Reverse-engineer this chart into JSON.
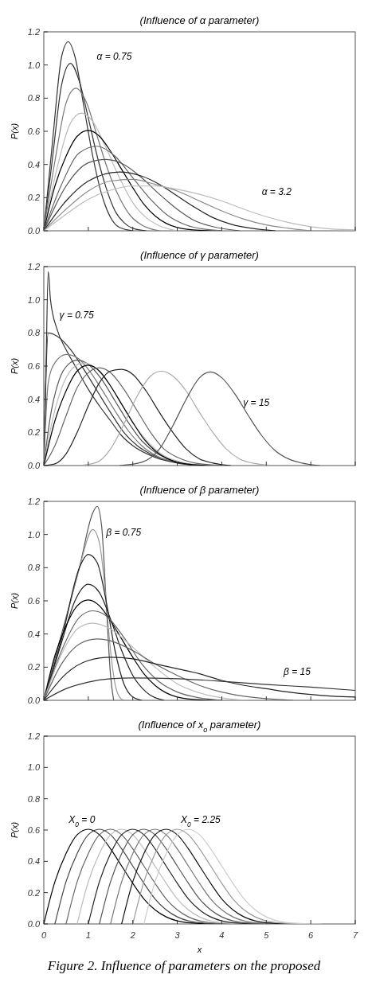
{
  "chart_data": [
    {
      "type": "line",
      "title": "(Influence of α parameter)",
      "ylabel": "P(x)",
      "xlim": [
        0,
        7
      ],
      "xticks": [
        0,
        1,
        2,
        3,
        4,
        5,
        6,
        7
      ],
      "ylim": [
        0,
        1.2
      ],
      "yticks": [
        {
          "value": 0,
          "label": "0.0"
        },
        {
          "value": 0.2,
          "label": "0.2"
        },
        {
          "value": 0.4,
          "label": "0.4"
        },
        {
          "value": 0.6,
          "label": "0.6"
        },
        {
          "value": 0.8,
          "label": "0.8"
        },
        {
          "value": 1,
          "label": "1.0"
        },
        {
          "value": 1.2,
          "label": "1.2"
        }
      ],
      "tick_labels": "y",
      "annotations": [
        "α = 0.75",
        "α = 3.2"
      ],
      "series": [
        {
          "color": "#333333",
          "x": [
            0,
            0.2,
            0.4,
            0.55,
            0.7,
            0.9,
            1.1,
            1.3,
            1.5,
            1.7,
            2
          ],
          "values": [
            0,
            0.55,
            1.05,
            1.14,
            1.05,
            0.75,
            0.45,
            0.22,
            0.08,
            0.02,
            0
          ]
        },
        {
          "color": "#333333",
          "x": [
            0,
            0.2,
            0.4,
            0.6,
            0.8,
            1,
            1.2,
            1.4,
            1.6,
            1.8,
            2,
            2.3
          ],
          "values": [
            0,
            0.45,
            0.88,
            1.01,
            0.9,
            0.68,
            0.45,
            0.26,
            0.12,
            0.05,
            0.015,
            0
          ]
        },
        {
          "color": "#777777",
          "x": [
            0,
            0.25,
            0.5,
            0.72,
            0.95,
            1.2,
            1.45,
            1.7,
            1.95,
            2.2,
            2.6
          ],
          "values": [
            0,
            0.42,
            0.77,
            0.86,
            0.78,
            0.57,
            0.36,
            0.2,
            0.09,
            0.035,
            0
          ]
        },
        {
          "color": "#bbbbbb",
          "x": [
            0,
            0.3,
            0.6,
            0.85,
            1.1,
            1.4,
            1.7,
            2,
            2.3,
            2.6,
            3
          ],
          "values": [
            0,
            0.38,
            0.65,
            0.71,
            0.66,
            0.5,
            0.32,
            0.17,
            0.08,
            0.03,
            0
          ]
        },
        {
          "color": "#000000",
          "x": [
            0,
            0.25,
            0.5,
            0.75,
            1,
            1.25,
            1.5,
            1.75,
            2,
            2.25,
            2.5,
            2.75,
            3,
            3.5,
            4
          ],
          "values": [
            0,
            0.27,
            0.45,
            0.57,
            0.605,
            0.57,
            0.48,
            0.37,
            0.26,
            0.16,
            0.09,
            0.045,
            0.02,
            0.003,
            0
          ]
        },
        {
          "color": "#666666",
          "x": [
            0,
            0.4,
            0.8,
            1.2,
            1.6,
            2,
            2.4,
            2.8,
            3.2,
            3.6,
            4
          ],
          "values": [
            0,
            0.28,
            0.47,
            0.51,
            0.45,
            0.32,
            0.19,
            0.09,
            0.035,
            0.01,
            0
          ]
        },
        {
          "color": "#555555",
          "x": [
            0,
            0.5,
            1,
            1.4,
            1.8,
            2.2,
            2.6,
            3,
            3.4,
            3.8,
            4.4
          ],
          "values": [
            0,
            0.27,
            0.41,
            0.43,
            0.4,
            0.32,
            0.22,
            0.13,
            0.06,
            0.025,
            0
          ]
        },
        {
          "color": "#222222",
          "x": [
            0,
            0.5,
            1,
            1.7,
            2.2,
            2.6,
            3,
            3.4,
            3.8,
            4.2,
            4.8,
            5.2
          ],
          "values": [
            0,
            0.18,
            0.3,
            0.355,
            0.33,
            0.28,
            0.21,
            0.14,
            0.08,
            0.04,
            0.01,
            0
          ]
        },
        {
          "color": "#888888",
          "x": [
            0,
            0.5,
            1,
            1.5,
            2,
            2.5,
            3,
            3.5,
            4,
            4.5,
            5,
            5.5,
            6
          ],
          "values": [
            0,
            0.13,
            0.24,
            0.3,
            0.31,
            0.28,
            0.24,
            0.18,
            0.12,
            0.07,
            0.035,
            0.015,
            0
          ]
        },
        {
          "color": "#bbbbbb",
          "x": [
            0,
            0.5,
            1,
            1.5,
            2,
            2.5,
            3,
            3.5,
            4,
            4.5,
            5,
            5.5,
            6,
            6.5,
            7
          ],
          "values": [
            0,
            0.1,
            0.19,
            0.245,
            0.27,
            0.27,
            0.25,
            0.22,
            0.18,
            0.13,
            0.085,
            0.05,
            0.025,
            0.01,
            0.005
          ]
        }
      ]
    },
    {
      "type": "line",
      "title": "(Influence of γ parameter)",
      "ylabel": "P(x)",
      "xlim": [
        0,
        7
      ],
      "xticks": [
        0,
        1,
        2,
        3,
        4,
        5,
        6,
        7
      ],
      "ylim": [
        0,
        1.2
      ],
      "yticks": [
        {
          "value": 0,
          "label": "0.0"
        },
        {
          "value": 0.2,
          "label": "0.2"
        },
        {
          "value": 0.4,
          "label": "0.4"
        },
        {
          "value": 0.6,
          "label": "0.6"
        },
        {
          "value": 0.8,
          "label": "0.8"
        },
        {
          "value": 1,
          "label": "1.0"
        },
        {
          "value": 1.2,
          "label": "1.2"
        }
      ],
      "tick_labels": "y",
      "annotations": [
        "γ = 0.75",
        "γ = 15"
      ],
      "series": [
        {
          "color": "#333333",
          "x": [
            0,
            0.05,
            0.1,
            0.15,
            0.3,
            0.5,
            0.75,
            1,
            1.25,
            1.5,
            1.75,
            2,
            2.5,
            3,
            3.5
          ],
          "values": [
            0,
            0.6,
            1.17,
            1,
            0.82,
            0.7,
            0.58,
            0.46,
            0.36,
            0.27,
            0.18,
            0.12,
            0.05,
            0.015,
            0
          ]
        },
        {
          "color": "#333333",
          "x": [
            0,
            0.1,
            0.3,
            0.6,
            0.9,
            1.2,
            1.5,
            1.8,
            2.1,
            2.4,
            2.8,
            3.4
          ],
          "values": [
            0,
            0.8,
            0.78,
            0.7,
            0.58,
            0.45,
            0.32,
            0.2,
            0.12,
            0.07,
            0.03,
            0
          ]
        },
        {
          "color": "#777777",
          "x": [
            0,
            0.1,
            0.25,
            0.5,
            0.75,
            1,
            1.3,
            1.6,
            1.9,
            2.2,
            2.6,
            3,
            3.6
          ],
          "values": [
            0,
            0.5,
            0.62,
            0.67,
            0.65,
            0.58,
            0.46,
            0.33,
            0.21,
            0.12,
            0.05,
            0.02,
            0
          ]
        },
        {
          "color": "#555555",
          "x": [
            0,
            0.15,
            0.35,
            0.55,
            0.75,
            1,
            1.3,
            1.6,
            1.9,
            2.2,
            2.5,
            2.9,
            3.5
          ],
          "values": [
            0,
            0.3,
            0.52,
            0.61,
            0.635,
            0.61,
            0.52,
            0.39,
            0.26,
            0.15,
            0.08,
            0.03,
            0
          ]
        },
        {
          "color": "#bbbbbb",
          "x": [
            0,
            0.2,
            0.45,
            0.7,
            0.9,
            1.15,
            1.45,
            1.75,
            2.05,
            2.35,
            2.7,
            3.1,
            3.7
          ],
          "values": [
            0,
            0.28,
            0.5,
            0.6,
            0.62,
            0.59,
            0.5,
            0.37,
            0.24,
            0.14,
            0.06,
            0.02,
            0
          ]
        },
        {
          "color": "#000000",
          "x": [
            0,
            0.25,
            0.5,
            0.75,
            1,
            1.25,
            1.5,
            1.75,
            2,
            2.25,
            2.5,
            2.75,
            3,
            3.5,
            4
          ],
          "values": [
            0,
            0.27,
            0.45,
            0.57,
            0.605,
            0.57,
            0.48,
            0.37,
            0.26,
            0.16,
            0.09,
            0.045,
            0.02,
            0.003,
            0
          ]
        },
        {
          "color": "#666666",
          "x": [
            0,
            0.25,
            0.5,
            0.75,
            1,
            1.25,
            1.5,
            1.8,
            2.1,
            2.4,
            2.7,
            3,
            3.4,
            4
          ],
          "values": [
            0,
            0.12,
            0.3,
            0.47,
            0.56,
            0.59,
            0.56,
            0.46,
            0.33,
            0.2,
            0.1,
            0.05,
            0.015,
            0
          ]
        },
        {
          "color": "#222222",
          "x": [
            0,
            0.25,
            0.5,
            0.75,
            1,
            1.25,
            1.5,
            1.75,
            2,
            2.3,
            2.6,
            2.9,
            3.2,
            3.5,
            3.8,
            4.2
          ],
          "values": [
            0,
            0.01,
            0.07,
            0.2,
            0.36,
            0.5,
            0.57,
            0.58,
            0.55,
            0.45,
            0.32,
            0.2,
            0.1,
            0.04,
            0.015,
            0
          ]
        },
        {
          "color": "#aaaaaa",
          "x": [
            0.8,
            1.2,
            1.5,
            1.8,
            2.1,
            2.4,
            2.65,
            2.9,
            3.2,
            3.5,
            3.8,
            4.1,
            4.4,
            4.8,
            5.2
          ],
          "values": [
            0,
            0.02,
            0.1,
            0.25,
            0.42,
            0.54,
            0.57,
            0.54,
            0.45,
            0.32,
            0.2,
            0.1,
            0.04,
            0.01,
            0
          ]
        },
        {
          "color": "#555555",
          "x": [
            1.7,
            2.2,
            2.6,
            2.9,
            3.2,
            3.5,
            3.75,
            4,
            4.3,
            4.6,
            4.9,
            5.2,
            5.5,
            5.8,
            6.2
          ],
          "values": [
            0,
            0.02,
            0.1,
            0.24,
            0.4,
            0.53,
            0.565,
            0.53,
            0.43,
            0.3,
            0.18,
            0.09,
            0.04,
            0.015,
            0
          ]
        }
      ]
    },
    {
      "type": "line",
      "title": "(Influence of β parameter)",
      "ylabel": "P(x)",
      "xlim": [
        0,
        7
      ],
      "xticks": [
        0,
        1,
        2,
        3,
        4,
        5,
        6,
        7
      ],
      "ylim": [
        0,
        1.2
      ],
      "yticks": [
        {
          "value": 0,
          "label": "0.0"
        },
        {
          "value": 0.2,
          "label": "0.2"
        },
        {
          "value": 0.4,
          "label": "0.4"
        },
        {
          "value": 0.6,
          "label": "0.6"
        },
        {
          "value": 0.8,
          "label": "0.8"
        },
        {
          "value": 1,
          "label": "1.0"
        },
        {
          "value": 1.2,
          "label": "1.2"
        }
      ],
      "tick_labels": "y",
      "annotations": [
        "β = 0.75",
        "β = 15"
      ],
      "series": [
        {
          "color": "#555555",
          "x": [
            0,
            0.4,
            0.8,
            1.1,
            1.2,
            1.3,
            1.4,
            1.5,
            1.57
          ],
          "values": [
            0,
            0.4,
            0.8,
            1.13,
            1.17,
            1.05,
            0.6,
            0.15,
            0
          ]
        },
        {
          "color": "#999999",
          "x": [
            0,
            0.4,
            0.8,
            1.1,
            1.25,
            1.4,
            1.5,
            1.6,
            1.7,
            1.8
          ],
          "values": [
            0,
            0.38,
            0.8,
            1.03,
            0.95,
            0.6,
            0.3,
            0.1,
            0.02,
            0
          ]
        },
        {
          "color": "#222222",
          "x": [
            0,
            0.4,
            0.8,
            1,
            1.2,
            1.4,
            1.6,
            1.8,
            2,
            2.2
          ],
          "values": [
            0,
            0.37,
            0.8,
            0.88,
            0.83,
            0.6,
            0.3,
            0.1,
            0.02,
            0
          ]
        },
        {
          "color": "#222222",
          "x": [
            0,
            0.4,
            0.7,
            1,
            1.25,
            1.5,
            1.75,
            2,
            2.3,
            2.7
          ],
          "values": [
            0,
            0.35,
            0.6,
            0.7,
            0.65,
            0.49,
            0.3,
            0.15,
            0.05,
            0
          ]
        },
        {
          "color": "#000000",
          "x": [
            0,
            0.25,
            0.5,
            0.75,
            1,
            1.25,
            1.5,
            1.75,
            2,
            2.25,
            2.5,
            2.75,
            3,
            3.5,
            4
          ],
          "values": [
            0,
            0.27,
            0.45,
            0.57,
            0.605,
            0.57,
            0.48,
            0.37,
            0.26,
            0.16,
            0.09,
            0.045,
            0.02,
            0.003,
            0
          ]
        },
        {
          "color": "#666666",
          "x": [
            0,
            0.4,
            0.8,
            1.1,
            1.4,
            1.8,
            2.2,
            2.6,
            3,
            3.5,
            4
          ],
          "values": [
            0,
            0.3,
            0.5,
            0.54,
            0.51,
            0.38,
            0.22,
            0.11,
            0.05,
            0.015,
            0
          ]
        },
        {
          "color": "#bbbbbb",
          "x": [
            0,
            0.4,
            0.8,
            1.1,
            1.5,
            2,
            2.5,
            3,
            3.5,
            4,
            4.6
          ],
          "values": [
            0,
            0.28,
            0.44,
            0.465,
            0.43,
            0.32,
            0.2,
            0.1,
            0.045,
            0.015,
            0
          ]
        },
        {
          "color": "#666666",
          "x": [
            0,
            0.4,
            0.8,
            1.2,
            1.6,
            2,
            2.5,
            3,
            3.5,
            4,
            4.5,
            5,
            5.6
          ],
          "values": [
            0,
            0.22,
            0.34,
            0.37,
            0.35,
            0.3,
            0.22,
            0.15,
            0.09,
            0.05,
            0.025,
            0.01,
            0
          ]
        },
        {
          "color": "#222222",
          "x": [
            0,
            0.5,
            1,
            1.5,
            2,
            2.5,
            3,
            3.5,
            4,
            4.5,
            5,
            5.5,
            6,
            6.5,
            7
          ],
          "values": [
            0,
            0.16,
            0.24,
            0.26,
            0.25,
            0.22,
            0.19,
            0.16,
            0.12,
            0.09,
            0.07,
            0.05,
            0.035,
            0.025,
            0.02
          ]
        },
        {
          "color": "#333333",
          "x": [
            0,
            0.5,
            1,
            1.5,
            2,
            3,
            4,
            5,
            6,
            7
          ],
          "values": [
            0,
            0.07,
            0.11,
            0.13,
            0.135,
            0.13,
            0.115,
            0.095,
            0.08,
            0.06
          ]
        }
      ]
    },
    {
      "type": "line",
      "title": "(Influence of x$_{o}$ parameter)",
      "ylabel": "P(x)",
      "xlabel": "x",
      "xlim": [
        0,
        7
      ],
      "xticks": [
        0,
        1,
        2,
        3,
        4,
        5,
        6,
        7
      ],
      "ylim": [
        0,
        1.2
      ],
      "yticks": [
        {
          "value": 0,
          "label": "0.0"
        },
        {
          "value": 0.2,
          "label": "0.2"
        },
        {
          "value": 0.4,
          "label": "0.4"
        },
        {
          "value": 0.6,
          "label": "0.6"
        },
        {
          "value": 0.8,
          "label": "0.8"
        },
        {
          "value": 1,
          "label": "1.0"
        },
        {
          "value": 1.2,
          "label": "1.2"
        }
      ],
      "annotations": [
        "X$_{0}$ = 0",
        "X$_{0}$ = 2.25",
        "Figure 2. Influence of parameters on the proposed"
      ],
      "series": [
        {
          "color": "#000000",
          "x": [
            0,
            0.25,
            0.5,
            0.75,
            1,
            1.25,
            1.5,
            1.75,
            2,
            2.25,
            2.5,
            2.75,
            3,
            3.5,
            4
          ],
          "values": [
            0,
            0.27,
            0.45,
            0.57,
            0.605,
            0.57,
            0.48,
            0.37,
            0.26,
            0.16,
            0.09,
            0.045,
            0.02,
            0.003,
            0
          ]
        },
        {
          "color": "#444444",
          "x": [
            0.25,
            0.5,
            0.75,
            1,
            1.25,
            1.5,
            1.75,
            2,
            2.25,
            2.5,
            2.75,
            3,
            3.25,
            3.75,
            4.25
          ],
          "values": [
            0,
            0.27,
            0.45,
            0.57,
            0.605,
            0.57,
            0.48,
            0.37,
            0.26,
            0.16,
            0.09,
            0.045,
            0.02,
            0.003,
            0
          ]
        },
        {
          "color": "#666666",
          "x": [
            0.5,
            0.75,
            1,
            1.25,
            1.5,
            1.75,
            2,
            2.25,
            2.5,
            2.75,
            3,
            3.25,
            3.5,
            4,
            4.5
          ],
          "values": [
            0,
            0.27,
            0.45,
            0.57,
            0.605,
            0.57,
            0.48,
            0.37,
            0.26,
            0.16,
            0.09,
            0.045,
            0.02,
            0.003,
            0
          ]
        },
        {
          "color": "#bbbbbb",
          "x": [
            0.75,
            1,
            1.25,
            1.5,
            1.75,
            2,
            2.25,
            2.5,
            2.75,
            3,
            3.25,
            3.5,
            3.75,
            4.25,
            4.75
          ],
          "values": [
            0,
            0.27,
            0.45,
            0.57,
            0.605,
            0.57,
            0.48,
            0.37,
            0.26,
            0.16,
            0.09,
            0.045,
            0.02,
            0.003,
            0
          ]
        },
        {
          "color": "#222222",
          "x": [
            1,
            1.25,
            1.5,
            1.75,
            2,
            2.25,
            2.5,
            2.75,
            3,
            3.25,
            3.5,
            3.75,
            4,
            4.5,
            5
          ],
          "values": [
            0,
            0.27,
            0.45,
            0.57,
            0.605,
            0.57,
            0.48,
            0.37,
            0.26,
            0.16,
            0.09,
            0.045,
            0.02,
            0.003,
            0
          ]
        },
        {
          "color": "#555555",
          "x": [
            1.25,
            1.5,
            1.75,
            2,
            2.25,
            2.5,
            2.75,
            3,
            3.25,
            3.5,
            3.75,
            4,
            4.25,
            4.75,
            5.25
          ],
          "values": [
            0,
            0.27,
            0.45,
            0.57,
            0.605,
            0.57,
            0.48,
            0.37,
            0.26,
            0.16,
            0.09,
            0.045,
            0.02,
            0.003,
            0
          ]
        },
        {
          "color": "#777777",
          "x": [
            1.5,
            1.75,
            2,
            2.25,
            2.5,
            2.75,
            3,
            3.25,
            3.5,
            3.75,
            4,
            4.25,
            4.5,
            5,
            5.5
          ],
          "values": [
            0,
            0.27,
            0.45,
            0.57,
            0.605,
            0.57,
            0.48,
            0.37,
            0.26,
            0.16,
            0.09,
            0.045,
            0.02,
            0.003,
            0
          ]
        },
        {
          "color": "#111111",
          "x": [
            1.75,
            2,
            2.25,
            2.5,
            2.75,
            3,
            3.25,
            3.5,
            3.75,
            4,
            4.25,
            4.5,
            4.75,
            5.25,
            5.75
          ],
          "values": [
            0,
            0.27,
            0.45,
            0.57,
            0.605,
            0.57,
            0.48,
            0.37,
            0.26,
            0.16,
            0.09,
            0.045,
            0.02,
            0.003,
            0
          ]
        },
        {
          "color": "#999999",
          "x": [
            2,
            2.25,
            2.5,
            2.75,
            3,
            3.25,
            3.5,
            3.75,
            4,
            4.25,
            4.5,
            4.75,
            5,
            5.5,
            6
          ],
          "values": [
            0,
            0.27,
            0.45,
            0.57,
            0.605,
            0.57,
            0.48,
            0.37,
            0.26,
            0.16,
            0.09,
            0.045,
            0.02,
            0.003,
            0
          ]
        },
        {
          "color": "#cccccc",
          "x": [
            2.25,
            2.5,
            2.75,
            3,
            3.25,
            3.5,
            3.75,
            4,
            4.25,
            4.5,
            4.75,
            5,
            5.25,
            5.75,
            6.25
          ],
          "values": [
            0,
            0.27,
            0.45,
            0.57,
            0.605,
            0.57,
            0.48,
            0.37,
            0.26,
            0.16,
            0.09,
            0.045,
            0.02,
            0.003,
            0
          ]
        }
      ]
    }
  ]
}
